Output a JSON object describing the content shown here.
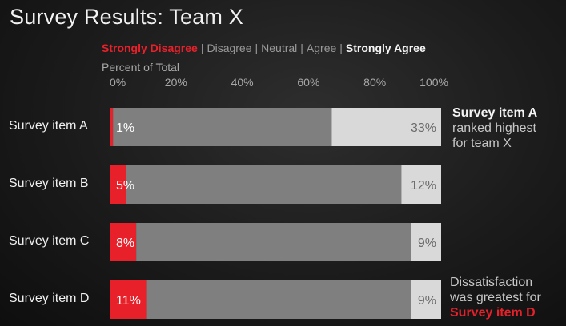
{
  "title": "Survey Results: Team X",
  "legend": {
    "strongly_disagree": "Strongly Disagree",
    "disagree": "Disagree",
    "neutral": "Neutral",
    "agree": "Agree",
    "strongly_agree": "Strongly Agree",
    "separator": "|"
  },
  "annotations": {
    "a_bold": "Survey item A",
    "a_line2": "ranked highest",
    "a_line3": "for team X",
    "d_line1": "Dissatisfaction",
    "d_line2": "was greatest for",
    "d_bold": "Survey item D"
  },
  "colors": {
    "strongly_disagree": "#e8202a",
    "middle": "#7f7f7f",
    "strongly_agree": "#d9d9d9"
  },
  "chart_data": {
    "type": "bar",
    "orientation": "horizontal",
    "stacked": true,
    "title": "Survey Results: Team X",
    "xlabel": "Percent of Total",
    "xlim": [
      0,
      100
    ],
    "xticks": [
      "0%",
      "20%",
      "40%",
      "60%",
      "80%",
      "100%"
    ],
    "grid": false,
    "legend_position": "top",
    "categories": [
      "Survey item A",
      "Survey item B",
      "Survey item C",
      "Survey item D"
    ],
    "series": [
      {
        "name": "Strongly Disagree",
        "values": [
          1,
          5,
          8,
          11
        ],
        "labels": [
          "1%",
          "5%",
          "8%",
          "11%"
        ]
      },
      {
        "name": "Disagree | Neutral | Agree",
        "values": [
          66,
          83,
          83,
          80
        ]
      },
      {
        "name": "Strongly Agree",
        "values": [
          33,
          12,
          9,
          9
        ],
        "labels": [
          "33%",
          "12%",
          "9%",
          "9%"
        ]
      }
    ]
  }
}
